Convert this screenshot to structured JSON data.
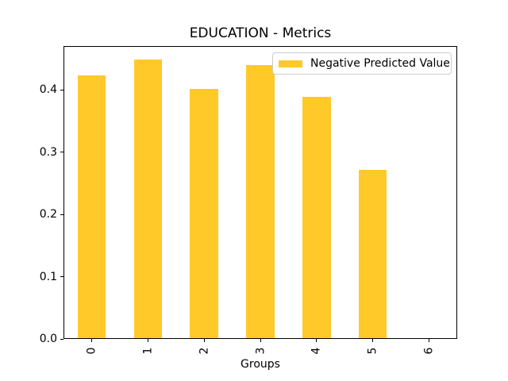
{
  "chart_data": {
    "type": "bar",
    "title": "EDUCATION - Metrics",
    "xlabel": "Groups",
    "ylabel": "",
    "categories": [
      "0",
      "1",
      "2",
      "3",
      "4",
      "5",
      "6"
    ],
    "series": [
      {
        "name": "Negative Predicted Value",
        "values": [
          0.422,
          0.448,
          0.4,
          0.438,
          0.388,
          0.27,
          0.0
        ]
      }
    ],
    "ylim": [
      0,
      0.4704
    ],
    "yticks": [
      {
        "label": "0.0",
        "value": 0.0
      },
      {
        "label": "0.1",
        "value": 0.1
      },
      {
        "label": "0.2",
        "value": 0.2
      },
      {
        "label": "0.3",
        "value": 0.3
      },
      {
        "label": "0.4",
        "value": 0.4
      }
    ],
    "bar_color": "#ffc92a",
    "bar_relative_width": 0.5,
    "grid": false,
    "legend": {
      "position": "upper right",
      "label": "Negative Predicted Value"
    }
  }
}
